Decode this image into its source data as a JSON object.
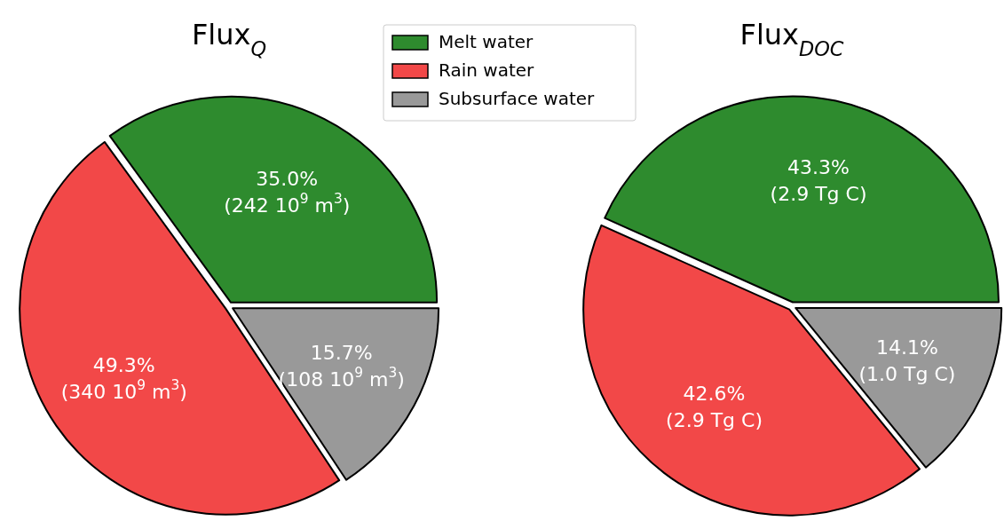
{
  "chart_data": [
    {
      "type": "pie",
      "title": "Flux$_{Q}$",
      "categories": [
        "Melt water",
        "Rain water",
        "Subsurface water"
      ],
      "values": [
        35.0,
        49.3,
        15.7
      ],
      "colors": [
        "#2e8b2e",
        "#f24848",
        "#999999"
      ],
      "value_labels": [
        "35.0%\n(242 10$^{9}$ m$^{3}$)",
        "49.3%\n(340 10$^{9}$ m$^{3}$)",
        "15.7%\n(108 10$^{9}$ m$^{3}$)"
      ],
      "legend": "top right"
    },
    {
      "type": "pie",
      "title": "Flux$_{DOC}$",
      "categories": [
        null,
        null,
        null
      ],
      "values": [
        43.3,
        42.6,
        14.1
      ],
      "colors": [
        "#2e8b2e",
        "#f24848",
        "#999999"
      ],
      "value_labels": [
        "43.3%\n(2.9 Tg C)",
        "42.6%\n(2.9 Tg C)",
        "14.1%\n(1.0 Tg C)"
      ]
    }
  ]
}
